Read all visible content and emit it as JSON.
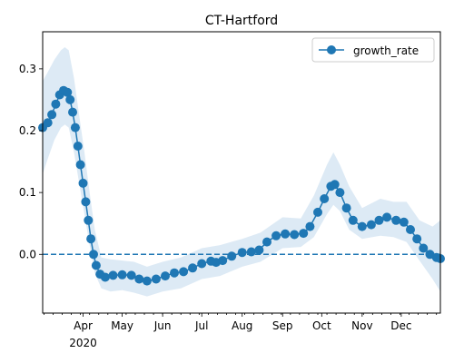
{
  "chart_data": {
    "type": "line",
    "title": "CT-Hartford",
    "xlabel": "",
    "ylabel": "",
    "legend": {
      "position": "top-right",
      "entries": [
        "growth_rate"
      ]
    },
    "grid": false,
    "xlim": [
      "2020-03-01",
      "2020-12-31"
    ],
    "ylim": [
      -0.095,
      0.36
    ],
    "colors": {
      "series": "#1f77b4",
      "band": "#c6dcef",
      "baseline": "#1f77b4"
    },
    "x_ticks": [
      {
        "date": "2020-04-01",
        "label": "Apr",
        "sublabel": "2020"
      },
      {
        "date": "2020-05-01",
        "label": "May"
      },
      {
        "date": "2020-06-01",
        "label": "Jun"
      },
      {
        "date": "2020-07-01",
        "label": "Jul"
      },
      {
        "date": "2020-08-01",
        "label": "Aug"
      },
      {
        "date": "2020-09-01",
        "label": "Sep"
      },
      {
        "date": "2020-10-01",
        "label": "Oct"
      },
      {
        "date": "2020-11-01",
        "label": "Nov"
      },
      {
        "date": "2020-12-01",
        "label": "Dec"
      }
    ],
    "y_ticks": [
      {
        "value": 0.3,
        "label": "0.3"
      },
      {
        "value": 0.2,
        "label": "0.2"
      },
      {
        "value": 0.1,
        "label": "0.1"
      },
      {
        "value": 0.0,
        "label": "0.0"
      }
    ],
    "reference_line": {
      "y": 0.0,
      "style": "dashed"
    },
    "series": [
      {
        "name": "growth_rate",
        "marker": "circle",
        "points": [
          [
            "2020-03-01",
            0.205
          ],
          [
            "2020-03-05",
            0.213
          ],
          [
            "2020-03-08",
            0.226
          ],
          [
            "2020-03-11",
            0.243
          ],
          [
            "2020-03-14",
            0.258
          ],
          [
            "2020-03-17",
            0.265
          ],
          [
            "2020-03-20",
            0.262
          ],
          [
            "2020-03-22",
            0.25
          ],
          [
            "2020-03-24",
            0.23
          ],
          [
            "2020-03-26",
            0.205
          ],
          [
            "2020-03-28",
            0.175
          ],
          [
            "2020-03-30",
            0.145
          ],
          [
            "2020-04-01",
            0.115
          ],
          [
            "2020-04-03",
            0.085
          ],
          [
            "2020-04-05",
            0.055
          ],
          [
            "2020-04-07",
            0.025
          ],
          [
            "2020-04-09",
            0.0
          ],
          [
            "2020-04-11",
            -0.018
          ],
          [
            "2020-04-14",
            -0.032
          ],
          [
            "2020-04-18",
            -0.037
          ],
          [
            "2020-04-24",
            -0.034
          ],
          [
            "2020-05-01",
            -0.033
          ],
          [
            "2020-05-08",
            -0.034
          ],
          [
            "2020-05-14",
            -0.04
          ],
          [
            "2020-05-20",
            -0.043
          ],
          [
            "2020-05-27",
            -0.04
          ],
          [
            "2020-06-03",
            -0.035
          ],
          [
            "2020-06-10",
            -0.03
          ],
          [
            "2020-06-17",
            -0.028
          ],
          [
            "2020-06-24",
            -0.022
          ],
          [
            "2020-07-01",
            -0.015
          ],
          [
            "2020-07-08",
            -0.011
          ],
          [
            "2020-07-12",
            -0.013
          ],
          [
            "2020-07-17",
            -0.01
          ],
          [
            "2020-07-24",
            -0.003
          ],
          [
            "2020-08-01",
            0.003
          ],
          [
            "2020-08-08",
            0.004
          ],
          [
            "2020-08-14",
            0.007
          ],
          [
            "2020-08-20",
            0.02
          ],
          [
            "2020-08-27",
            0.03
          ],
          [
            "2020-09-03",
            0.033
          ],
          [
            "2020-09-10",
            0.032
          ],
          [
            "2020-09-17",
            0.034
          ],
          [
            "2020-09-22",
            0.045
          ],
          [
            "2020-09-28",
            0.068
          ],
          [
            "2020-10-03",
            0.09
          ],
          [
            "2020-10-08",
            0.11
          ],
          [
            "2020-10-11",
            0.113
          ],
          [
            "2020-10-15",
            0.1
          ],
          [
            "2020-10-20",
            0.075
          ],
          [
            "2020-10-25",
            0.055
          ],
          [
            "2020-11-01",
            0.045
          ],
          [
            "2020-11-08",
            0.048
          ],
          [
            "2020-11-14",
            0.055
          ],
          [
            "2020-11-20",
            0.06
          ],
          [
            "2020-11-27",
            0.055
          ],
          [
            "2020-12-03",
            0.052
          ],
          [
            "2020-12-08",
            0.04
          ],
          [
            "2020-12-13",
            0.025
          ],
          [
            "2020-12-18",
            0.01
          ],
          [
            "2020-12-23",
            0.0
          ],
          [
            "2020-12-28",
            -0.005
          ],
          [
            "2020-12-31",
            -0.007
          ]
        ],
        "band": [
          [
            "2020-03-01",
            0.13,
            0.28
          ],
          [
            "2020-03-05",
            0.155,
            0.295
          ],
          [
            "2020-03-10",
            0.185,
            0.315
          ],
          [
            "2020-03-15",
            0.205,
            0.33
          ],
          [
            "2020-03-18",
            0.21,
            0.335
          ],
          [
            "2020-03-21",
            0.205,
            0.33
          ],
          [
            "2020-03-25",
            0.165,
            0.285
          ],
          [
            "2020-03-29",
            0.115,
            0.225
          ],
          [
            "2020-04-02",
            0.065,
            0.165
          ],
          [
            "2020-04-06",
            0.015,
            0.1
          ],
          [
            "2020-04-10",
            -0.03,
            0.04
          ],
          [
            "2020-04-15",
            -0.055,
            -0.005
          ],
          [
            "2020-04-22",
            -0.06,
            -0.008
          ],
          [
            "2020-05-01",
            -0.058,
            -0.01
          ],
          [
            "2020-05-10",
            -0.062,
            -0.012
          ],
          [
            "2020-05-20",
            -0.068,
            -0.02
          ],
          [
            "2020-06-01",
            -0.06,
            -0.012
          ],
          [
            "2020-06-15",
            -0.055,
            -0.005
          ],
          [
            "2020-07-01",
            -0.04,
            0.01
          ],
          [
            "2020-07-15",
            -0.035,
            0.015
          ],
          [
            "2020-08-01",
            -0.02,
            0.025
          ],
          [
            "2020-08-15",
            -0.012,
            0.035
          ],
          [
            "2020-09-01",
            0.01,
            0.06
          ],
          [
            "2020-09-15",
            0.012,
            0.058
          ],
          [
            "2020-09-25",
            0.028,
            0.095
          ],
          [
            "2020-10-05",
            0.065,
            0.145
          ],
          [
            "2020-10-10",
            0.08,
            0.165
          ],
          [
            "2020-10-15",
            0.07,
            0.145
          ],
          [
            "2020-10-22",
            0.04,
            0.11
          ],
          [
            "2020-11-01",
            0.025,
            0.075
          ],
          [
            "2020-11-15",
            0.03,
            0.09
          ],
          [
            "2020-11-25",
            0.028,
            0.085
          ],
          [
            "2020-12-05",
            0.02,
            0.085
          ],
          [
            "2020-12-15",
            -0.01,
            0.055
          ],
          [
            "2020-12-25",
            -0.04,
            0.045
          ],
          [
            "2020-12-31",
            -0.06,
            0.055
          ]
        ]
      }
    ]
  }
}
